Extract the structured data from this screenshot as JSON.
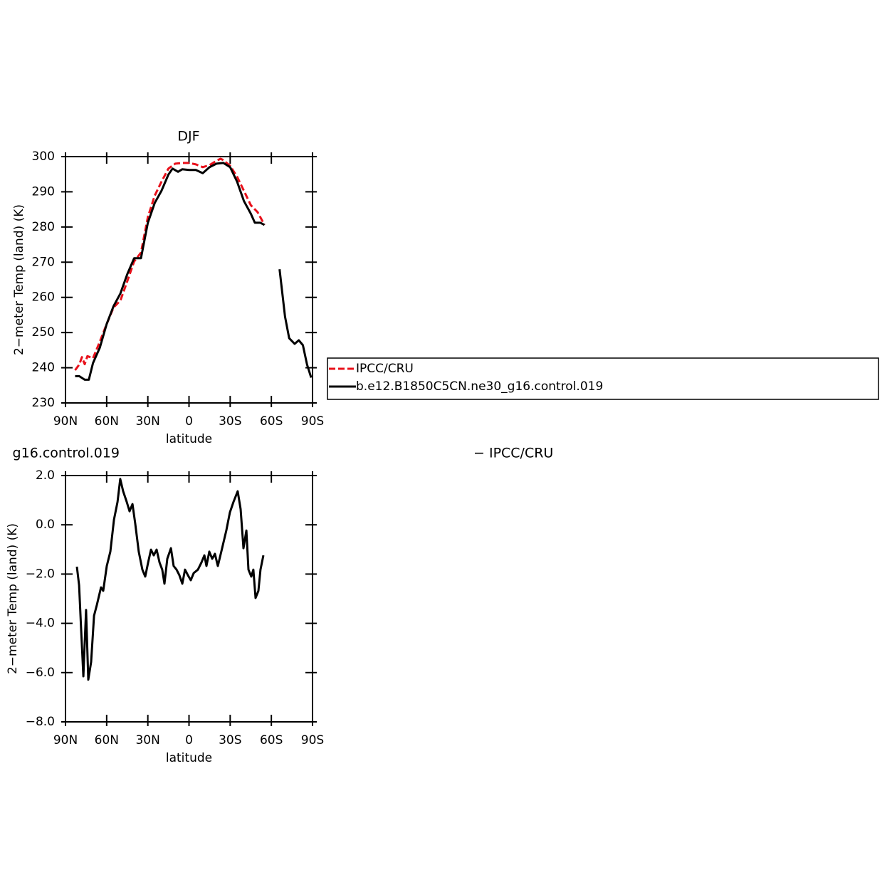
{
  "chart_data": [
    {
      "type": "line",
      "title": "DJF",
      "xlabel": "latitude",
      "ylabel": "2−meter Temp (land) (K)",
      "xlim": [
        90,
        -90
      ],
      "xticks": [
        {
          "value": 90,
          "label": "90N"
        },
        {
          "value": 60,
          "label": "60N"
        },
        {
          "value": 30,
          "label": "30N"
        },
        0,
        {
          "value": -30,
          "label": "30S"
        },
        {
          "value": -60,
          "label": "60S"
        },
        {
          "value": -90,
          "label": "90S"
        }
      ],
      "ylim": [
        230,
        300
      ],
      "yticks": [
        230,
        240,
        250,
        260,
        270,
        280,
        290,
        300
      ],
      "series": [
        {
          "name": "IPCC/CRU",
          "color": "#e8101a",
          "style": "dashed",
          "x": [
            83,
            80,
            78,
            76,
            74,
            70,
            65,
            60,
            55,
            50,
            45,
            40,
            35,
            30,
            25,
            20,
            15,
            10,
            5,
            0,
            -5,
            -10,
            -15,
            -20,
            -23,
            -25,
            -30,
            -35,
            -40,
            -45,
            -50,
            -55
          ],
          "values": [
            239.3,
            240.9,
            243,
            241,
            243.3,
            242.7,
            247.4,
            252.4,
            257.1,
            259.1,
            264.6,
            270.2,
            272.7,
            282.8,
            288.9,
            292.9,
            296.6,
            298,
            298.2,
            298.2,
            297.8,
            297,
            297.6,
            298.8,
            299.4,
            299,
            297.4,
            294.3,
            290.3,
            286.2,
            284.2,
            280.6
          ]
        },
        {
          "name": "b.e12.B1850C5CN.ne30_g16.control.019",
          "color": "#000000",
          "style": "solid",
          "x": [
            83,
            80,
            76,
            73,
            70,
            65,
            60,
            55,
            50,
            45,
            40,
            35,
            30,
            25,
            20,
            15,
            12,
            8,
            5,
            0,
            -5,
            -10,
            -15,
            -20,
            -25,
            -30,
            -35,
            -40,
            -45,
            -48,
            -52,
            -55,
            -60,
            -66,
            -70,
            -73,
            -77,
            -80,
            -83,
            -86,
            -89
          ],
          "values": [
            237.6,
            237.6,
            236.6,
            236.6,
            241.3,
            245.7,
            252.4,
            257.5,
            261.1,
            266.6,
            271.1,
            271.1,
            281.2,
            286.8,
            290.3,
            294.9,
            296.6,
            295.7,
            296.4,
            296.2,
            296.2,
            295.3,
            297,
            298,
            298.2,
            297,
            292.9,
            287.4,
            283.8,
            281.2,
            281.2,
            280.6,
            null,
            268,
            254.5,
            248.4,
            246.8,
            247.8,
            246.4,
            240.9,
            237.2
          ]
        }
      ]
    },
    {
      "type": "line",
      "title": "g16.control.019",
      "annotation": "− IPCC/CRU",
      "xlabel": "latitude",
      "ylabel": "2−meter Temp (land) (K)",
      "xlim": [
        90,
        -90
      ],
      "xticks": [
        {
          "value": 90,
          "label": "90N"
        },
        {
          "value": 60,
          "label": "60N"
        },
        {
          "value": 30,
          "label": "30N"
        },
        0,
        {
          "value": -30,
          "label": "30S"
        },
        {
          "value": -60,
          "label": "60S"
        },
        {
          "value": -90,
          "label": "90S"
        }
      ],
      "ylim": [
        -8,
        2
      ],
      "yticks": [
        {
          "value": -8,
          "label": "−8.0"
        },
        {
          "value": -6,
          "label": "−6.0"
        },
        {
          "value": -4,
          "label": "−4.0"
        },
        {
          "value": -2,
          "label": "−2.0"
        },
        {
          "value": 0,
          "label": "0.0"
        },
        {
          "value": 2,
          "label": "2.0"
        }
      ],
      "series": [
        {
          "color": "#000000",
          "style": "solid",
          "x": [
            81.7,
            80.1,
            78.6,
            77.0,
            75.0,
            73.4,
            71.3,
            69.2,
            67.2,
            64.1,
            62.5,
            59.9,
            57.3,
            54.7,
            52.1,
            50.1,
            48.0,
            45.4,
            43.3,
            41.2,
            39.2,
            36.6,
            34.0,
            31.9,
            29.8,
            27.7,
            25.7,
            23.6,
            21.5,
            19.5,
            17.9,
            15.8,
            13.2,
            11.2,
            9.1,
            7.0,
            4.9,
            2.9,
            0.8,
            -1.3,
            -3.4,
            -6.5,
            -9.1,
            -11.2,
            -12.7,
            -14.8,
            -16.9,
            -18.9,
            -21.0,
            -24.1,
            -27.2,
            -29.8,
            -32.4,
            -35.5,
            -37.6,
            -39.7,
            -41.8,
            -43.3,
            -45.4,
            -46.9,
            -48.5,
            -50.6,
            -52.1,
            -54.2
          ],
          "values": [
            -1.7,
            -2.45,
            -4.27,
            -6.15,
            -3.46,
            -6.29,
            -5.57,
            -3.69,
            -3.26,
            -2.54,
            -2.68,
            -1.67,
            -1.09,
            0.21,
            0.93,
            1.86,
            1.36,
            0.93,
            0.55,
            0.84,
            0.06,
            -1.09,
            -1.82,
            -2.1,
            -1.53,
            -1.01,
            -1.24,
            -1.01,
            -1.53,
            -1.82,
            -2.39,
            -1.38,
            -0.95,
            -1.67,
            -1.82,
            -2.05,
            -2.39,
            -1.82,
            -2.05,
            -2.25,
            -1.96,
            -1.82,
            -1.53,
            -1.24,
            -1.67,
            -1.09,
            -1.38,
            -1.18,
            -1.67,
            -0.95,
            -0.23,
            0.5,
            0.93,
            1.36,
            0.64,
            -0.95,
            -0.23,
            -1.82,
            -2.1,
            -1.82,
            -2.97,
            -2.68,
            -1.82,
            -1.24
          ]
        }
      ]
    }
  ]
}
